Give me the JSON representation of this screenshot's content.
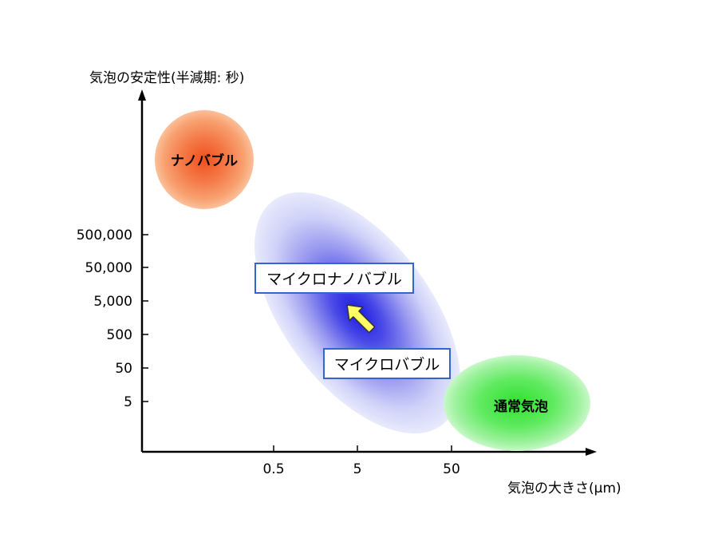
{
  "diagram": {
    "y_axis_label": "気泡の安定性(半減期: 秒)",
    "x_axis_label": "気泡の大きさ(μm)",
    "y_ticks": [
      "500,000",
      "50,000",
      "5,000",
      "500",
      "50",
      "5"
    ],
    "x_ticks": [
      "0.5",
      "5",
      "50"
    ],
    "regions": {
      "nanobubble": "ナノバブル",
      "micro_nano_bubble": "マイクロナノバブル",
      "microbubble": "マイクロバブル",
      "normal_bubble": "通常気泡"
    },
    "colors": {
      "nanobubble": "#f05a28",
      "micro_nano_bubble": "#2020e0",
      "normal_bubble": "#40e040",
      "arrow": "#ffff66",
      "label_border": "#3366cc"
    },
    "arrow_icon": "up-left-arrow"
  }
}
